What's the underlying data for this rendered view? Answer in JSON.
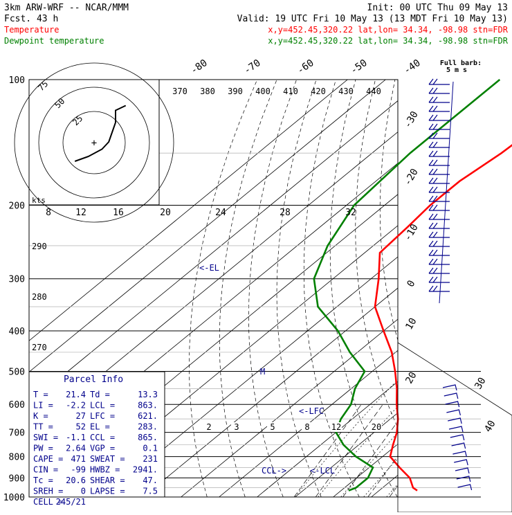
{
  "header": {
    "model": "3km ARW-WRF -- NCAR/MMM",
    "init": "Init: 00 UTC Thu 09 May 13",
    "fcst": "Fcst.    43 h",
    "valid": "Valid: 19 UTC Fri 10 May 13 (13 MDT Fri 10 May 13)",
    "series": [
      {
        "name": "Temperature",
        "info": "x,y=452.45,320.22   lat,lon= 34.34, -98.98   stn=FDR",
        "color": "#ff0000"
      },
      {
        "name": "Dewpoint temperature",
        "info": "x,y=452.45,320.22   lat,lon= 34.34, -98.98   stn=FDR",
        "color": "#008000"
      }
    ]
  },
  "chart_data": {
    "type": "line",
    "pressure_ticks": [
      "100",
      "200",
      "300",
      "400",
      "500",
      "600",
      "700",
      "800",
      "900",
      "1000"
    ],
    "temperature_ticks_top": [
      "-80",
      "-70",
      "-60",
      "-50",
      "-40"
    ],
    "temperature_ticks_right": [
      "-30",
      "-20",
      "-10",
      "0",
      "10",
      "20",
      "30",
      "40"
    ],
    "theta_labels": [
      "370",
      "380",
      "390",
      "400",
      "410",
      "420",
      "430",
      "440"
    ],
    "theta_side_labels": [
      "290",
      "280",
      "270"
    ],
    "mixing_ratio_labels": [
      "2",
      "3",
      "5",
      "8",
      "12",
      "20"
    ],
    "hodograph": {
      "ring_labels": [
        "75",
        "50",
        "25"
      ],
      "speed_labels": [
        "8",
        "12",
        "16",
        "20",
        "24",
        "28",
        "32"
      ],
      "unit": "kts",
      "path_uv": [
        [
          -2,
          -2
        ],
        [
          2,
          0
        ],
        [
          6,
          3
        ],
        [
          8,
          6
        ],
        [
          9,
          10
        ],
        [
          10,
          14
        ],
        [
          10,
          19
        ],
        [
          13,
          21
        ]
      ]
    },
    "barb_label": "Full barb:",
    "barb_units": "5 m s",
    "annotations": [
      "<-EL",
      "M",
      "<-LFC",
      "CCL->",
      "<-LCL"
    ],
    "temperature_profile": [
      [
        100,
        -55
      ],
      [
        125,
        -55
      ],
      [
        150,
        -56
      ],
      [
        175,
        -58
      ],
      [
        200,
        -58
      ],
      [
        225,
        -57
      ],
      [
        260,
        -56
      ],
      [
        300,
        -48
      ],
      [
        350,
        -40
      ],
      [
        400,
        -30
      ],
      [
        450,
        -21
      ],
      [
        500,
        -14
      ],
      [
        550,
        -8
      ],
      [
        600,
        -3
      ],
      [
        650,
        2
      ],
      [
        700,
        6
      ],
      [
        750,
        9
      ],
      [
        800,
        12
      ],
      [
        850,
        18
      ],
      [
        900,
        24
      ],
      [
        950,
        28
      ],
      [
        965,
        30
      ]
    ],
    "dewpoint_profile": [
      [
        100,
        -80
      ],
      [
        150,
        -80
      ],
      [
        200,
        -78
      ],
      [
        250,
        -72
      ],
      [
        300,
        -65
      ],
      [
        350,
        -55
      ],
      [
        400,
        -42
      ],
      [
        450,
        -32
      ],
      [
        500,
        -22
      ],
      [
        550,
        -19
      ],
      [
        600,
        -15
      ],
      [
        650,
        -13
      ],
      [
        700,
        -10
      ],
      [
        750,
        -4
      ],
      [
        800,
        3
      ],
      [
        850,
        11
      ],
      [
        900,
        13
      ],
      [
        950,
        13
      ],
      [
        965,
        12
      ]
    ]
  },
  "parcel": {
    "title": "Parcel Info",
    "rows": [
      [
        "T  =",
        "21.4",
        "Td =",
        "13.3"
      ],
      [
        "LI =",
        "-2.2",
        "LCL =",
        "863."
      ],
      [
        "K  =",
        "27",
        "LFC =",
        "621."
      ],
      [
        "TT =",
        "52",
        "EL  =",
        "283."
      ],
      [
        "SWI =",
        "-1.1",
        "CCL =",
        "865."
      ],
      [
        "PW =",
        "2.64",
        "VGP =",
        "0.1"
      ],
      [
        "CAPE =",
        "471",
        "SWEAT =",
        "231"
      ],
      [
        "CIN =",
        "-99",
        "HWBZ =",
        "2941."
      ],
      [
        "Tc =",
        "20.6",
        "SHEAR =",
        "47."
      ],
      [
        "SREH =",
        "0",
        "LAPSE =",
        "7.5"
      ],
      [
        "CELL =",
        "245/21",
        "",
        ""
      ]
    ]
  },
  "colors": {
    "temperature": "#ff0000",
    "dewpoint": "#008000",
    "frame": "#000000",
    "annotation": "#00008b",
    "barbs": "#00008b"
  }
}
